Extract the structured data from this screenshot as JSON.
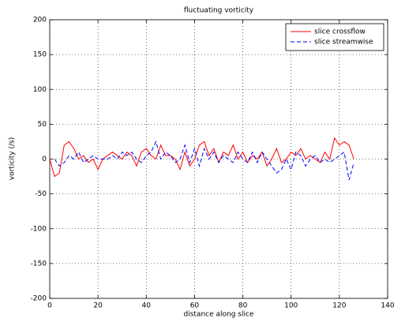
{
  "chart_data": {
    "type": "line",
    "title": "fluctuating vorticity",
    "x_label": "distance along slice",
    "y_label": "vorticity (/s)",
    "x": [
      0,
      2,
      4,
      6,
      8,
      10,
      12,
      14,
      16,
      18,
      20,
      22,
      24,
      26,
      28,
      30,
      32,
      34,
      36,
      38,
      40,
      42,
      44,
      46,
      48,
      50,
      52,
      54,
      56,
      58,
      60,
      62,
      64,
      66,
      68,
      70,
      72,
      74,
      76,
      78,
      80,
      82,
      84,
      86,
      88,
      90,
      92,
      94,
      96,
      98,
      100,
      102,
      104,
      106,
      108,
      110,
      112,
      114,
      116,
      118,
      120,
      122,
      124,
      126
    ],
    "series": [
      {
        "name": "slice crossflow",
        "color": "#ff0000",
        "dash": "solid",
        "values": [
          0,
          -25,
          -20,
          20,
          25,
          15,
          0,
          5,
          -5,
          0,
          -15,
          0,
          5,
          10,
          5,
          0,
          10,
          5,
          -10,
          10,
          15,
          5,
          0,
          20,
          5,
          5,
          0,
          -15,
          10,
          -10,
          0,
          20,
          25,
          5,
          15,
          -5,
          10,
          5,
          20,
          0,
          10,
          -5,
          5,
          0,
          10,
          -10,
          0,
          15,
          -5,
          0,
          10,
          5,
          15,
          0,
          5,
          0,
          -5,
          10,
          0,
          30,
          20,
          25,
          20,
          0
        ]
      },
      {
        "name": "slice streamwise",
        "color": "#0000ff",
        "dash": "dashed",
        "values": [
          null,
          0,
          -10,
          -5,
          5,
          0,
          10,
          -5,
          0,
          5,
          0,
          0,
          0,
          5,
          0,
          10,
          5,
          10,
          0,
          -5,
          5,
          10,
          25,
          0,
          10,
          5,
          -5,
          0,
          20,
          -5,
          15,
          -10,
          15,
          0,
          10,
          -5,
          5,
          0,
          -5,
          10,
          0,
          -5,
          10,
          -5,
          10,
          0,
          -10,
          -20,
          -15,
          0,
          -15,
          10,
          5,
          -10,
          0,
          5,
          -5,
          0,
          -5,
          0,
          5,
          10,
          -30,
          -5
        ]
      }
    ],
    "xlim": [
      0,
      140
    ],
    "xticks": [
      0,
      20,
      40,
      60,
      80,
      100,
      120,
      140
    ],
    "ylim": [
      -200,
      200
    ],
    "yticks": [
      -200,
      -150,
      -100,
      -50,
      0,
      50,
      100,
      150,
      200
    ],
    "grid": true,
    "legend": "upper-right"
  }
}
